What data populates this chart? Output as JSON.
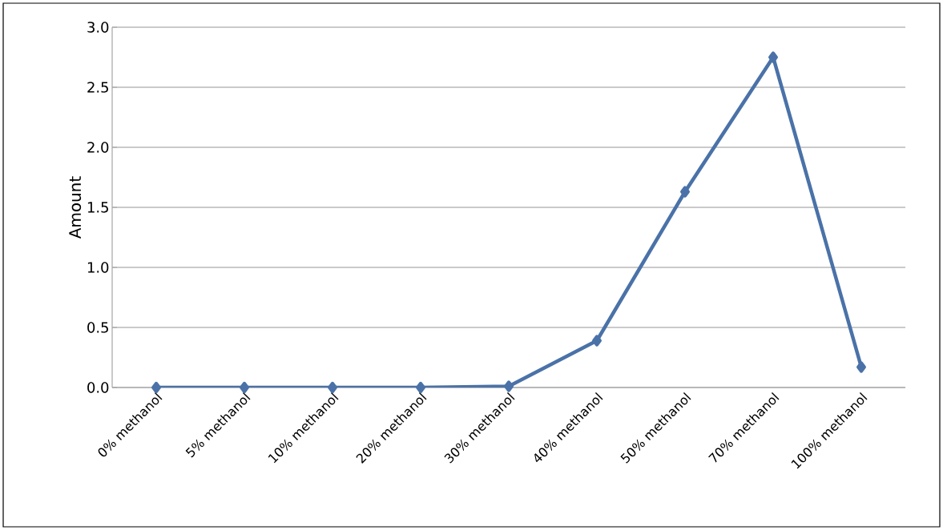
{
  "chart_data": {
    "type": "line",
    "ylabel": "Amount",
    "categories": [
      "0% methanol",
      "5% methanol",
      "10% methanol",
      "20% methanol",
      "30% methanol",
      "40% methanol",
      "50% methanol",
      "70% methanol",
      "100% methanol"
    ],
    "series": [
      {
        "color": "#4a72a8",
        "values": [
          0,
          0,
          0,
          0,
          0.01,
          0.39,
          1.63,
          2.75,
          0.17
        ]
      }
    ],
    "ylim": [
      0,
      3
    ],
    "yticks": [
      {
        "value": 0,
        "label": "0.0"
      },
      {
        "value": 0.5,
        "label": "0.5"
      },
      {
        "value": 1,
        "label": "1.0"
      },
      {
        "value": 1.5,
        "label": "1.5"
      },
      {
        "value": 2,
        "label": "2.0"
      },
      {
        "value": 2.5,
        "label": "2.5"
      },
      {
        "value": 3,
        "label": "3.0"
      }
    ],
    "grid": "y",
    "marker": "diamond",
    "line_style": "solid"
  }
}
